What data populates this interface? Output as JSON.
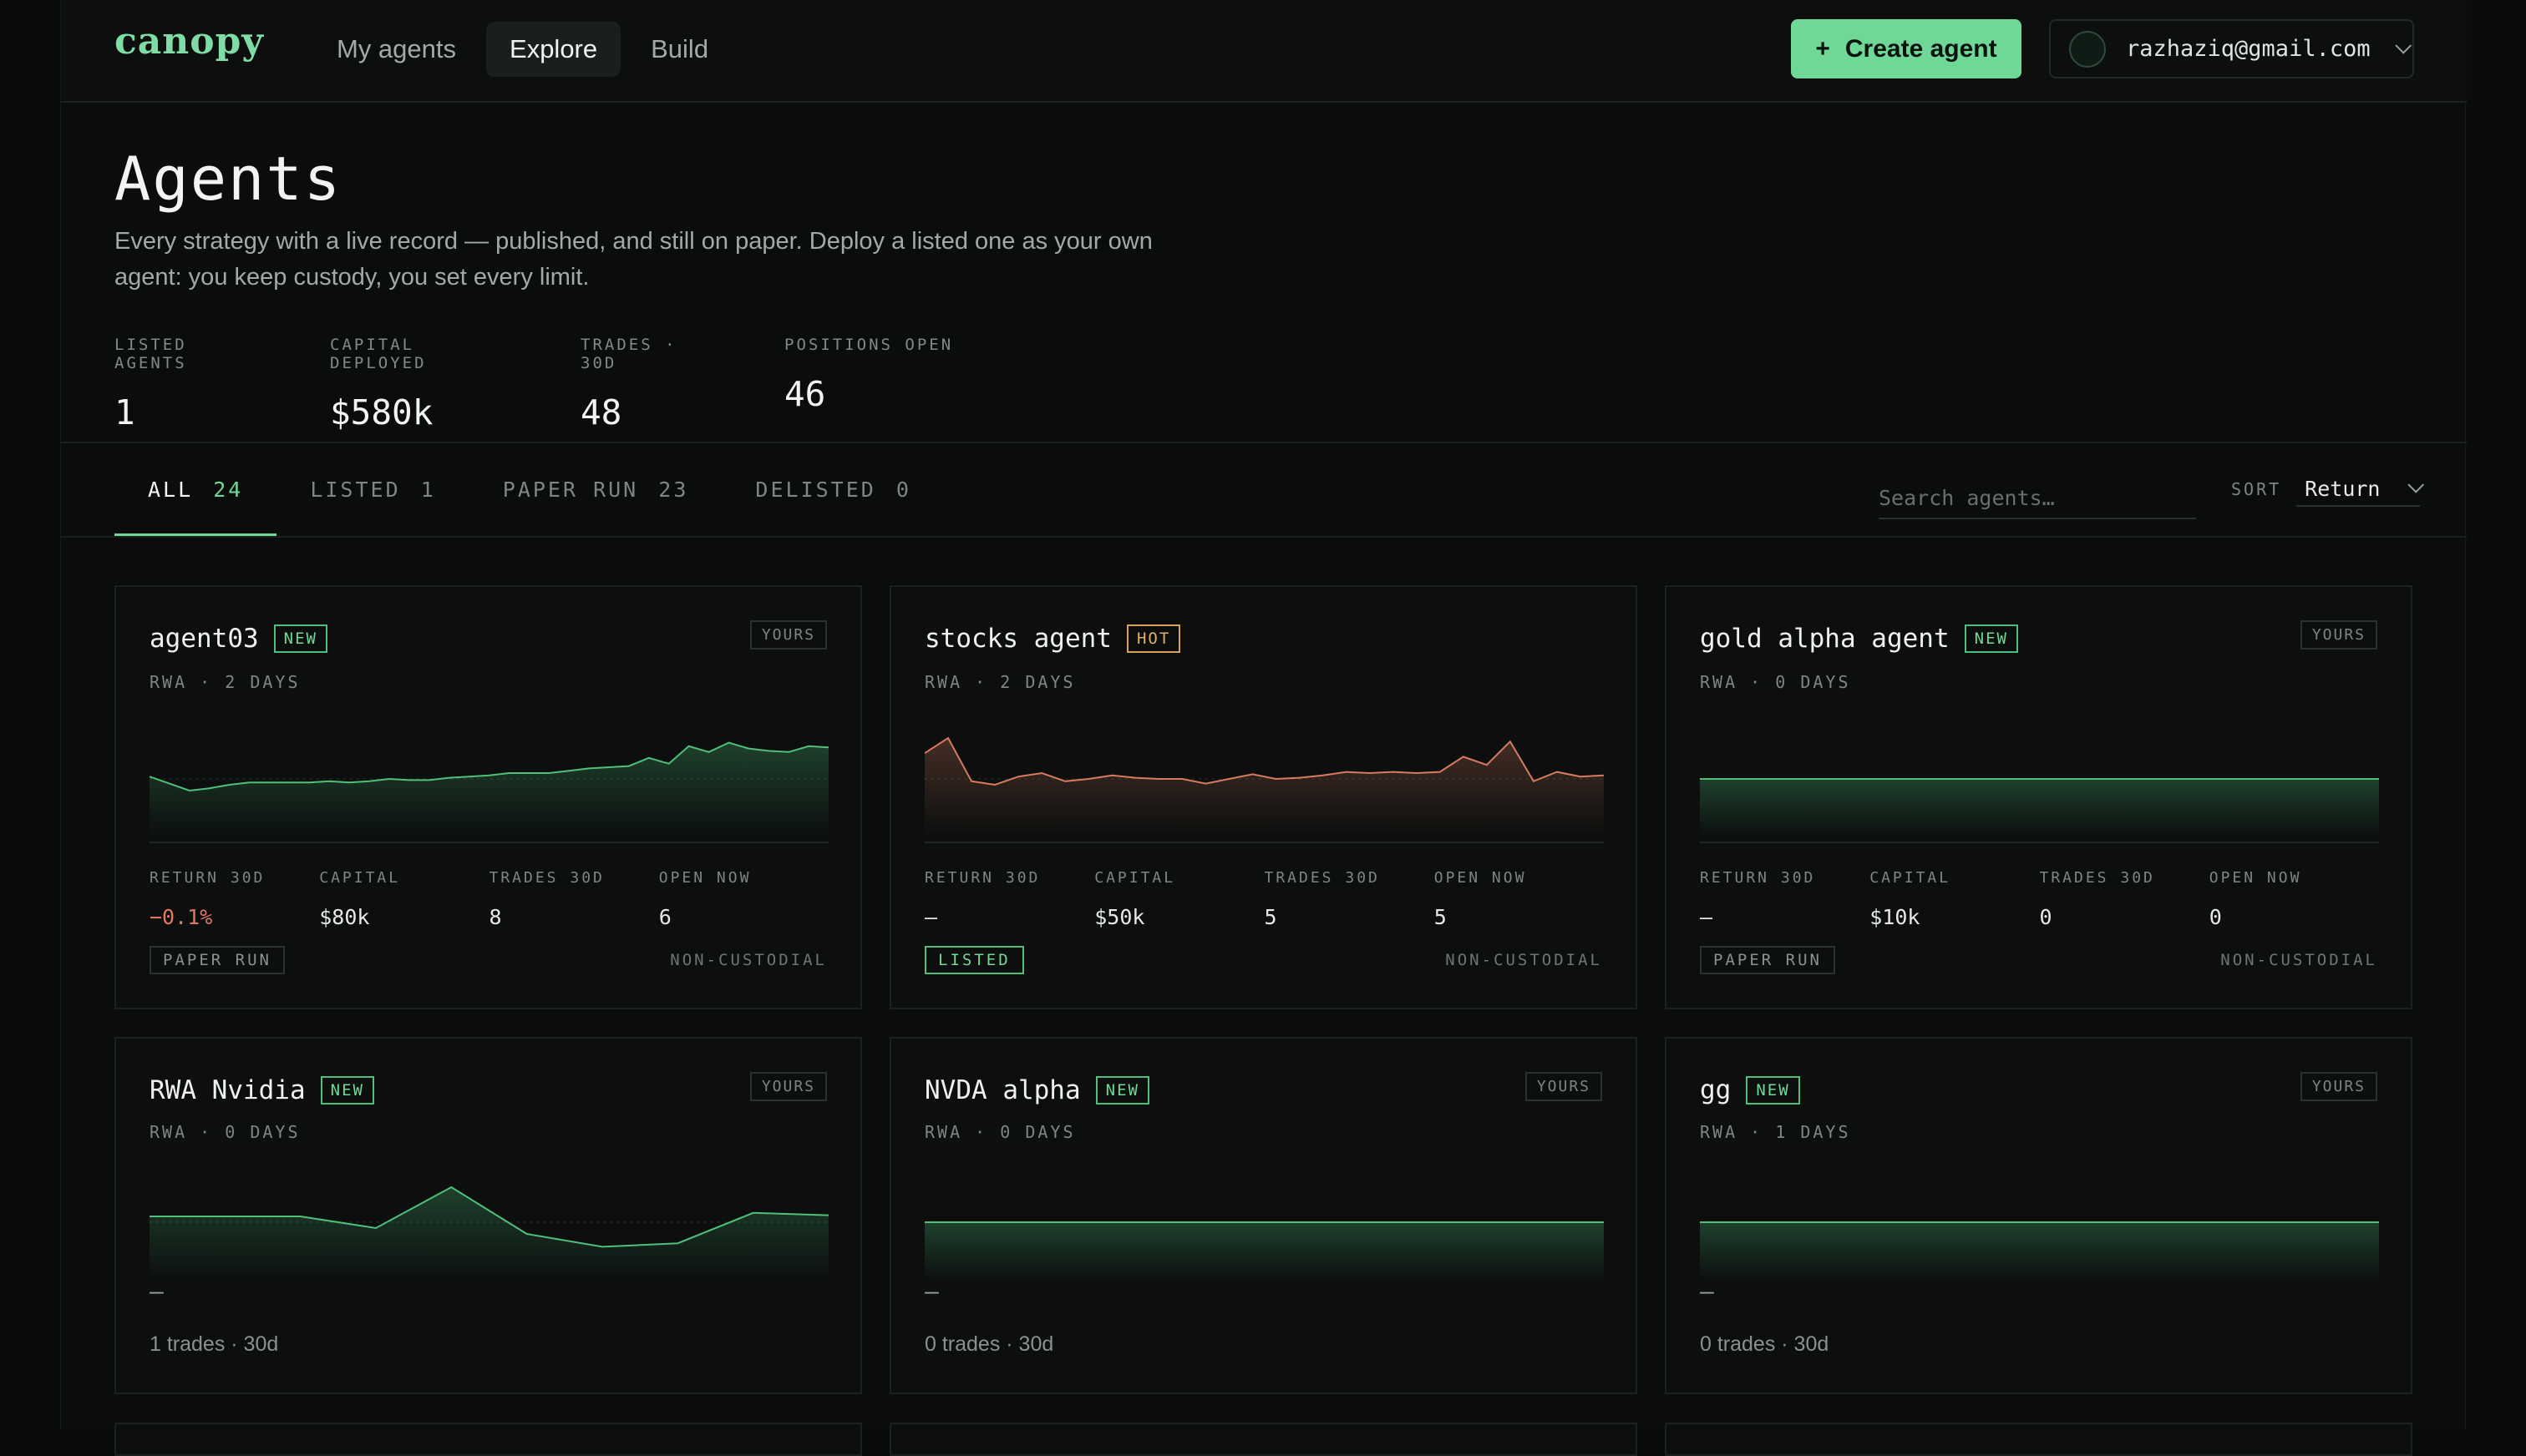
{
  "app": {
    "logo": "canopy",
    "nav": [
      {
        "label": "My agents",
        "active": false
      },
      {
        "label": "Explore",
        "active": true
      },
      {
        "label": "Build",
        "active": false
      }
    ],
    "create_label": "Create agent",
    "create_icon": "+",
    "user_email": "razhaziq@gmail.com"
  },
  "header": {
    "title": "Agents",
    "description": "Every strategy with a live record — published, and still on paper. Deploy a listed one as your own agent: you keep custody, you set every limit.",
    "stats": [
      {
        "label": "LISTED AGENTS",
        "value": "1"
      },
      {
        "label": "CAPITAL DEPLOYED",
        "value": "$580k"
      },
      {
        "label": "TRADES · 30D",
        "value": "48"
      },
      {
        "label": "POSITIONS OPEN",
        "value": "46"
      }
    ]
  },
  "tabs": [
    {
      "label": "ALL",
      "count": "24",
      "active": true
    },
    {
      "label": "LISTED",
      "count": "1",
      "active": false
    },
    {
      "label": "PAPER RUN",
      "count": "23",
      "active": false
    },
    {
      "label": "DELISTED",
      "count": "0",
      "active": false
    }
  ],
  "search": {
    "placeholder": "Search agents…"
  },
  "sort": {
    "label": "SORT",
    "value": "Return"
  },
  "colors": {
    "accent": "#6fd897",
    "negative": "#e27864",
    "hot": "#e2ae6b"
  },
  "metric_labels": [
    "RETURN 30D",
    "CAPITAL",
    "TRADES 30D",
    "OPEN NOW"
  ],
  "cards": [
    {
      "name": "agent03",
      "badge": "NEW",
      "badge_type": "new",
      "yours": "YOURS",
      "sub": "RWA · 2 DAYS",
      "series": [
        0.52,
        0.46,
        0.4,
        0.42,
        0.45,
        0.47,
        0.47,
        0.47,
        0.47,
        0.48,
        0.47,
        0.48,
        0.5,
        0.49,
        0.49,
        0.51,
        0.52,
        0.53,
        0.55,
        0.55,
        0.55,
        0.57,
        0.59,
        0.6,
        0.61,
        0.68,
        0.63,
        0.78,
        0.73,
        0.81,
        0.76,
        0.74,
        0.73,
        0.78,
        0.77
      ],
      "line_color": "#4fbf7a",
      "metrics": [
        "−0.1%",
        "$80k",
        "8",
        "6"
      ],
      "return_negative": true,
      "status": "PAPER RUN",
      "status_type": "paper",
      "custody": "NON-CUSTODIAL"
    },
    {
      "name": "stocks agent",
      "badge": "HOT",
      "badge_type": "hot",
      "yours": "",
      "sub": "RWA · 2 DAYS",
      "series": [
        0.72,
        0.85,
        0.48,
        0.45,
        0.52,
        0.55,
        0.48,
        0.5,
        0.53,
        0.51,
        0.5,
        0.5,
        0.46,
        0.5,
        0.54,
        0.5,
        0.51,
        0.53,
        0.56,
        0.55,
        0.56,
        0.55,
        0.56,
        0.69,
        0.62,
        0.82,
        0.48,
        0.56,
        0.52,
        0.53
      ],
      "line_color": "#d77a5f",
      "metrics": [
        "—",
        "$50k",
        "5",
        "5"
      ],
      "return_negative": false,
      "status": "LISTED",
      "status_type": "listed",
      "custody": "NON-CUSTODIAL"
    },
    {
      "name": "gold alpha agent",
      "badge": "NEW",
      "badge_type": "new",
      "yours": "YOURS",
      "sub": "RWA · 0 DAYS",
      "series": [
        0.5,
        0.5
      ],
      "line_color": "#4fbf7a",
      "metrics": [
        "—",
        "$10k",
        "0",
        "0"
      ],
      "return_negative": false,
      "status": "PAPER RUN",
      "status_type": "paper",
      "custody": "NON-CUSTODIAL"
    },
    {
      "name": "RWA Nvidia",
      "badge": "NEW",
      "badge_type": "new",
      "yours": "YOURS",
      "sub": "RWA · 0 DAYS",
      "series": [
        0.55,
        0.55,
        0.55,
        0.45,
        0.8,
        0.4,
        0.29,
        0.32,
        0.58,
        0.56
      ],
      "line_color": "#4fbf7a",
      "dash": "—",
      "trades_note": "1 trades · 30d"
    },
    {
      "name": "NVDA alpha",
      "badge": "NEW",
      "badge_type": "new",
      "yours": "YOURS",
      "sub": "RWA · 0 DAYS",
      "series": [
        0.5,
        0.5
      ],
      "line_color": "#4fbf7a",
      "dash": "—",
      "trades_note": "0 trades · 30d"
    },
    {
      "name": "gg",
      "badge": "NEW",
      "badge_type": "new",
      "yours": "YOURS",
      "sub": "RWA · 1 DAYS",
      "series": [
        0.5,
        0.5
      ],
      "line_color": "#4fbf7a",
      "dash": "—",
      "trades_note": "0 trades · 30d"
    }
  ]
}
